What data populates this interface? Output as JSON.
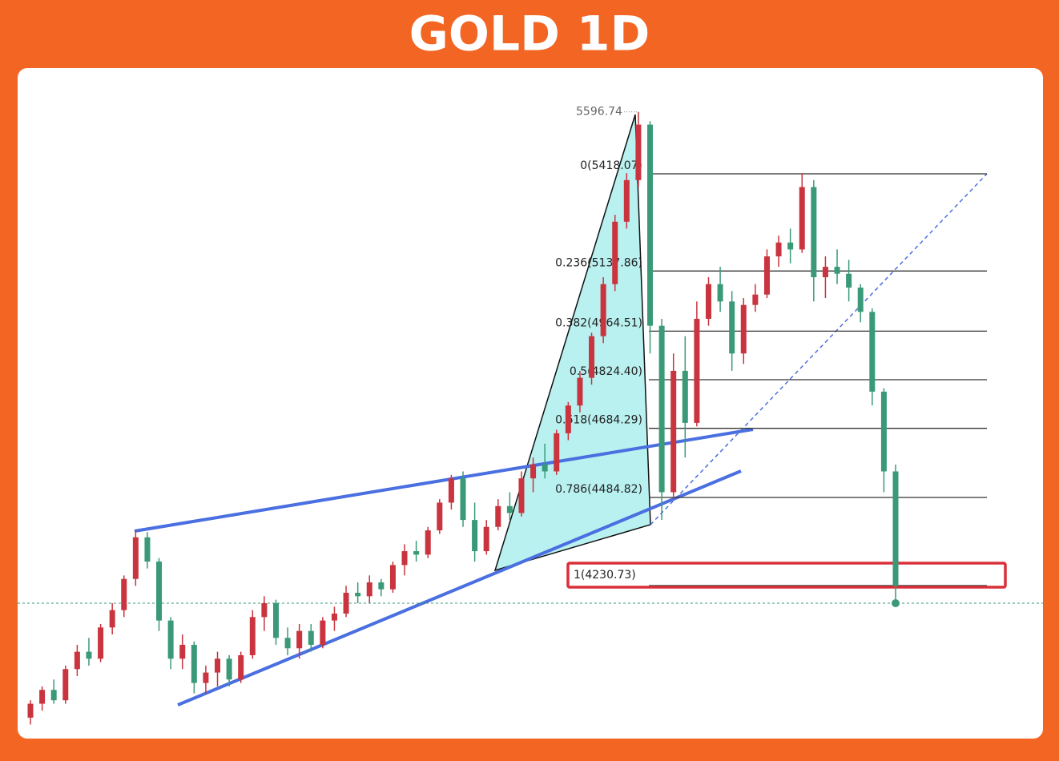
{
  "chart_data": {
    "type": "candlestick",
    "title": "GOLD 1D",
    "up_color": "#c9343e",
    "down_color": "#3a9a78",
    "ylim": [
      3800,
      5650
    ],
    "ohlc": [
      [
        3850,
        3900,
        3830,
        3890
      ],
      [
        3890,
        3940,
        3870,
        3930
      ],
      [
        3930,
        3960,
        3890,
        3900
      ],
      [
        3900,
        4000,
        3890,
        3990
      ],
      [
        3990,
        4060,
        3970,
        4040
      ],
      [
        4040,
        4080,
        4000,
        4020
      ],
      [
        4020,
        4120,
        4010,
        4110
      ],
      [
        4110,
        4180,
        4090,
        4160
      ],
      [
        4160,
        4260,
        4140,
        4250
      ],
      [
        4250,
        4390,
        4230,
        4370
      ],
      [
        4370,
        4385,
        4280,
        4300
      ],
      [
        4300,
        4310,
        4100,
        4130
      ],
      [
        4130,
        4140,
        3990,
        4020
      ],
      [
        4020,
        4090,
        3990,
        4060
      ],
      [
        4060,
        4070,
        3920,
        3950
      ],
      [
        3950,
        4000,
        3920,
        3980
      ],
      [
        3980,
        4040,
        3940,
        4020
      ],
      [
        4020,
        4030,
        3940,
        3960
      ],
      [
        3960,
        4040,
        3950,
        4030
      ],
      [
        4030,
        4160,
        4020,
        4140
      ],
      [
        4140,
        4200,
        4100,
        4180
      ],
      [
        4180,
        4190,
        4060,
        4080
      ],
      [
        4080,
        4110,
        4030,
        4050
      ],
      [
        4050,
        4120,
        4020,
        4100
      ],
      [
        4100,
        4120,
        4040,
        4060
      ],
      [
        4060,
        4140,
        4050,
        4130
      ],
      [
        4130,
        4170,
        4100,
        4150
      ],
      [
        4150,
        4230,
        4140,
        4210
      ],
      [
        4210,
        4240,
        4180,
        4200
      ],
      [
        4200,
        4260,
        4180,
        4240
      ],
      [
        4240,
        4250,
        4200,
        4220
      ],
      [
        4220,
        4300,
        4210,
        4290
      ],
      [
        4290,
        4350,
        4260,
        4330
      ],
      [
        4330,
        4360,
        4300,
        4320
      ],
      [
        4320,
        4400,
        4310,
        4390
      ],
      [
        4390,
        4480,
        4380,
        4470
      ],
      [
        4470,
        4550,
        4450,
        4540
      ],
      [
        4540,
        4560,
        4400,
        4420
      ],
      [
        4420,
        4470,
        4300,
        4330
      ],
      [
        4330,
        4420,
        4320,
        4400
      ],
      [
        4400,
        4480,
        4390,
        4460
      ],
      [
        4460,
        4500,
        4420,
        4440
      ],
      [
        4440,
        4560,
        4430,
        4540
      ],
      [
        4540,
        4600,
        4500,
        4580
      ],
      [
        4580,
        4640,
        4540,
        4560
      ],
      [
        4560,
        4680,
        4550,
        4670
      ],
      [
        4670,
        4760,
        4650,
        4750
      ],
      [
        4750,
        4850,
        4730,
        4830
      ],
      [
        4830,
        4960,
        4810,
        4950
      ],
      [
        4950,
        5120,
        4930,
        5100
      ],
      [
        5100,
        5300,
        5080,
        5280
      ],
      [
        5280,
        5420,
        5260,
        5400
      ],
      [
        5400,
        5596.74,
        5380,
        5560
      ],
      [
        5560,
        5570,
        4900,
        4980
      ],
      [
        4980,
        5000,
        4420,
        4500
      ],
      [
        4500,
        4900,
        4480,
        4850
      ],
      [
        4850,
        4950,
        4600,
        4700
      ],
      [
        4700,
        5050,
        4690,
        5000
      ],
      [
        5000,
        5120,
        4980,
        5100
      ],
      [
        5100,
        5150,
        5020,
        5050
      ],
      [
        5050,
        5080,
        4850,
        4900
      ],
      [
        4900,
        5060,
        4870,
        5040
      ],
      [
        5040,
        5100,
        5020,
        5070
      ],
      [
        5070,
        5200,
        5060,
        5180
      ],
      [
        5180,
        5240,
        5150,
        5220
      ],
      [
        5220,
        5260,
        5160,
        5200
      ],
      [
        5200,
        5420,
        5190,
        5380
      ],
      [
        5380,
        5400,
        5050,
        5120
      ],
      [
        5120,
        5180,
        5060,
        5150
      ],
      [
        5150,
        5200,
        5100,
        5130
      ],
      [
        5130,
        5170,
        5050,
        5090
      ],
      [
        5090,
        5100,
        4990,
        5020
      ],
      [
        5020,
        5030,
        4750,
        4790
      ],
      [
        4790,
        4800,
        4500,
        4560
      ],
      [
        4560,
        4580,
        4180,
        4230
      ]
    ],
    "fib_levels": [
      {
        "price": 5418.07,
        "label": "0(5418.07)"
      },
      {
        "price": 5137.86,
        "label": "0.236(5137.86)"
      },
      {
        "price": 4964.51,
        "label": "0.382(4964.51)"
      },
      {
        "price": 4824.4,
        "label": "0.5(4824.40)"
      },
      {
        "price": 4684.29,
        "label": "0.618(4684.29)"
      },
      {
        "price": 4484.82,
        "label": "0.786(4484.82)"
      },
      {
        "price": 4230.73,
        "label": "1(4230.73)"
      }
    ]
  }
}
